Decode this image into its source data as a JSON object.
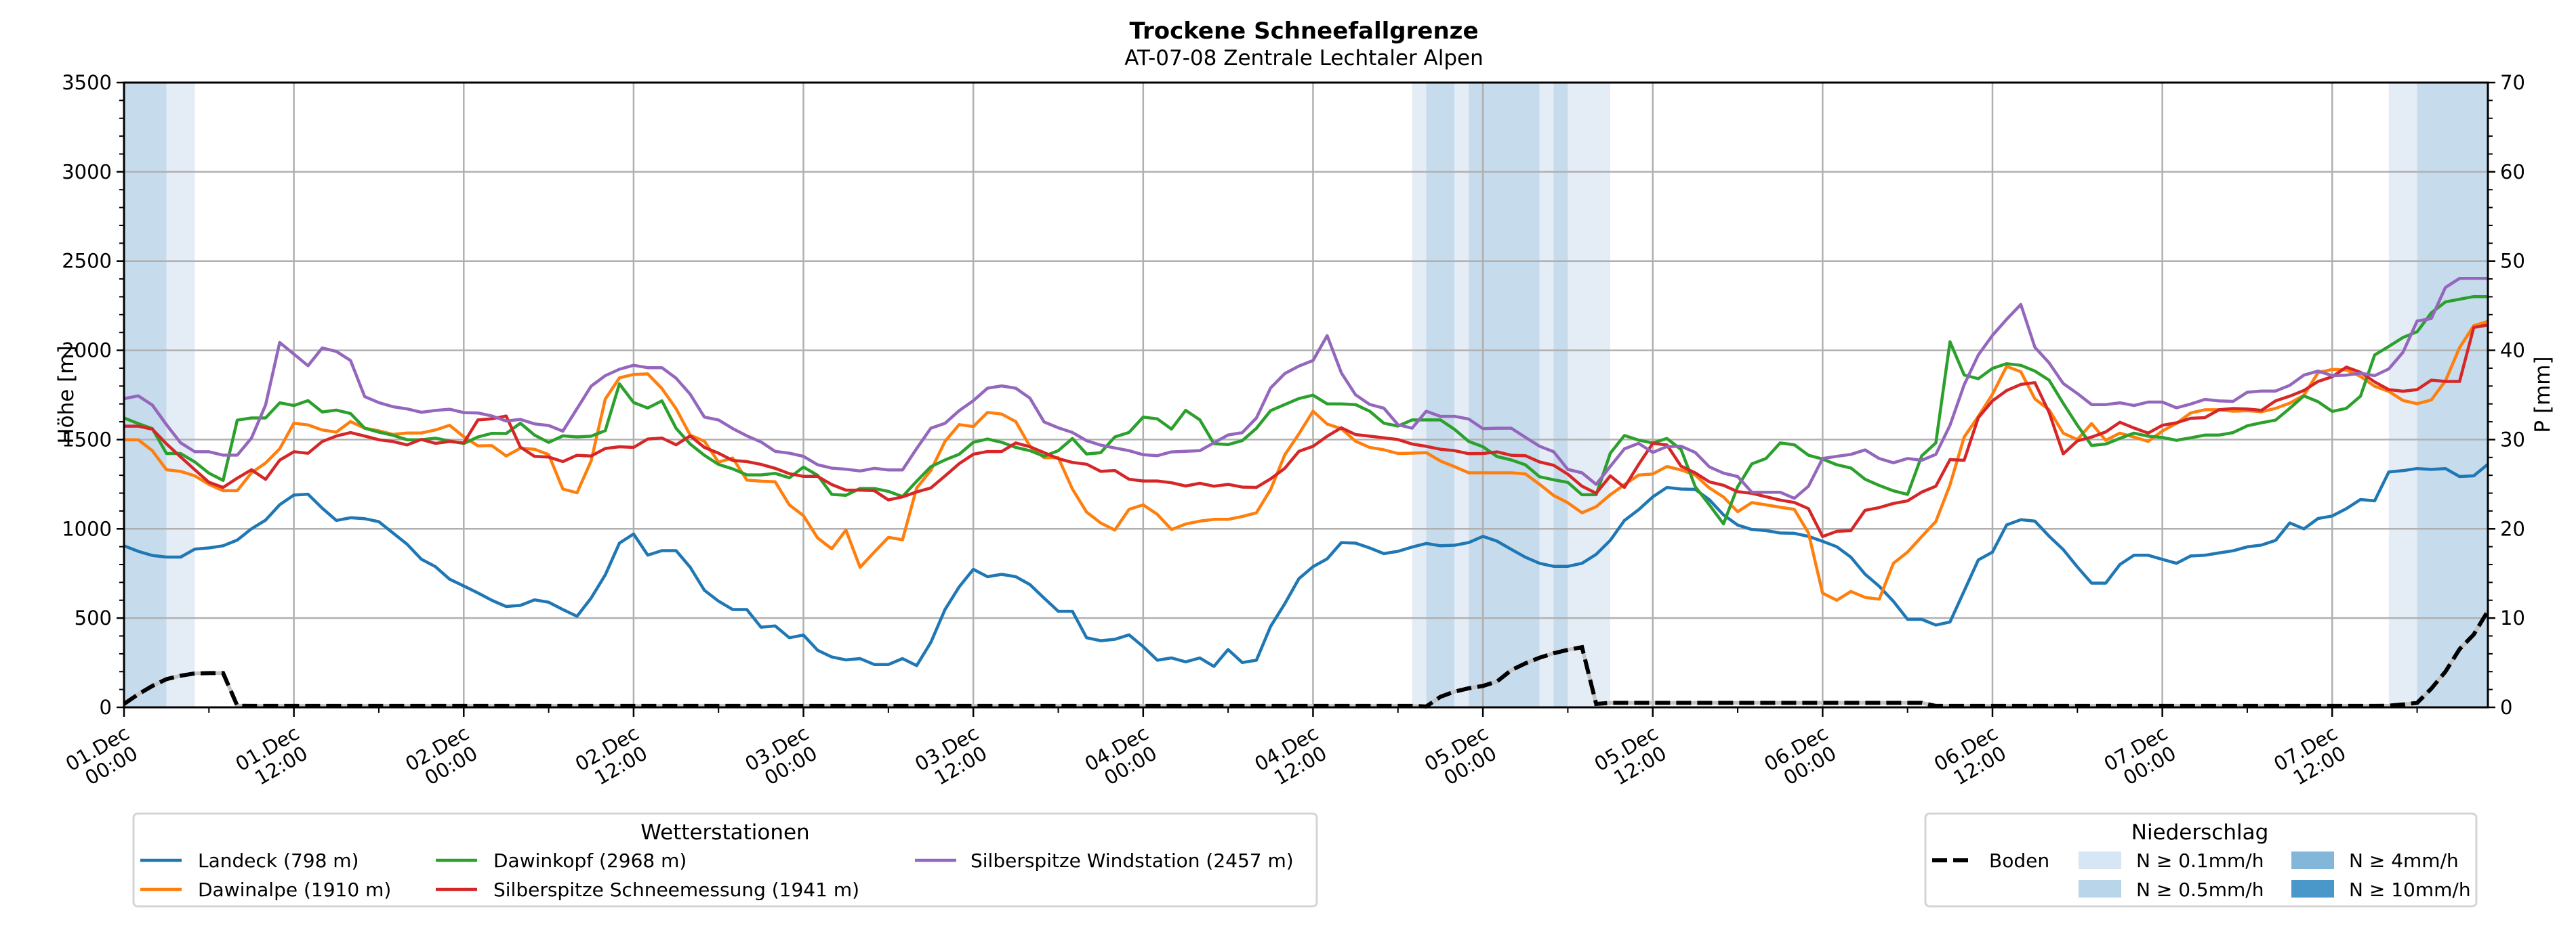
{
  "chart_data": {
    "type": "line",
    "title": "Trockene Schneefallgrenze",
    "subtitle": "AT-07-08 Zentrale Lechtaler Alpen",
    "ylabel": "Höhe [m]",
    "ylabel_right": "P [mm]",
    "ylim": [
      0,
      3500
    ],
    "ylim_right": [
      0,
      70
    ],
    "yticks": [
      "0",
      "500",
      "1000",
      "1500",
      "2000",
      "2500",
      "3000",
      "3500"
    ],
    "yticks_right": [
      "0",
      "10",
      "20",
      "30",
      "40",
      "50",
      "60",
      "70"
    ],
    "xlim": [
      0,
      167
    ],
    "xticks": [
      {
        "hour": 0,
        "line1": "01.Dec",
        "line2": "00:00"
      },
      {
        "hour": 12,
        "line1": "01.Dec",
        "line2": "12:00"
      },
      {
        "hour": 24,
        "line1": "02.Dec",
        "line2": "00:00"
      },
      {
        "hour": 36,
        "line1": "02.Dec",
        "line2": "12:00"
      },
      {
        "hour": 48,
        "line1": "03.Dec",
        "line2": "00:00"
      },
      {
        "hour": 60,
        "line1": "03.Dec",
        "line2": "12:00"
      },
      {
        "hour": 72,
        "line1": "04.Dec",
        "line2": "00:00"
      },
      {
        "hour": 84,
        "line1": "04.Dec",
        "line2": "12:00"
      },
      {
        "hour": 96,
        "line1": "05.Dec",
        "line2": "00:00"
      },
      {
        "hour": 108,
        "line1": "05.Dec",
        "line2": "12:00"
      },
      {
        "hour": 120,
        "line1": "06.Dec",
        "line2": "00:00"
      },
      {
        "hour": 132,
        "line1": "06.Dec",
        "line2": "12:00"
      },
      {
        "hour": 144,
        "line1": "07.Dec",
        "line2": "00:00"
      },
      {
        "hour": 156,
        "line1": "07.Dec",
        "line2": "12:00"
      }
    ],
    "grid": true,
    "series": [
      {
        "name": "Landeck (798 m)",
        "color": "#1f77b4",
        "values": [
          905,
          874,
          851,
          842,
          842,
          886,
          893,
          905,
          937,
          1000,
          1049,
          1135,
          1189,
          1194,
          1116,
          1047,
          1062,
          1057,
          1040,
          977,
          914,
          830,
          788,
          718,
          680,
          641,
          599,
          565,
          571,
          602,
          589,
          548,
          510,
          612,
          742,
          920,
          971,
          853,
          878,
          878,
          785,
          656,
          595,
          548,
          548,
          449,
          456,
          390,
          405,
          320,
          282,
          266,
          273,
          240,
          240,
          273,
          234,
          364,
          548,
          675,
          773,
          732,
          745,
          732,
          688,
          612,
          538,
          538,
          390,
          373,
          381,
          406,
          340,
          264,
          277,
          255,
          277,
          229,
          324,
          251,
          264,
          453,
          580,
          721,
          788,
          832,
          923,
          920,
          893,
          861,
          874,
          898,
          918,
          905,
          908,
          923,
          958,
          931,
          885,
          841,
          807,
          790,
          790,
          807,
          857,
          936,
          1047,
          1107,
          1179,
          1232,
          1223,
          1221,
          1163,
          1078,
          1021,
          996,
          990,
          977,
          975,
          958,
          930,
          900,
          841,
          746,
          678,
          594,
          493,
          493,
          461,
          478,
          652,
          826,
          870,
          1022,
          1051,
          1043,
          959,
          884,
          786,
          696,
          696,
          800,
          852,
          852,
          829,
          807,
          848,
          852,
          865,
          877,
          899,
          909,
          935,
          1033,
          1000,
          1058,
          1072,
          1113,
          1164,
          1157,
          1319,
          1326,
          1338,
          1333,
          1338,
          1293,
          1297,
          1362
        ]
      },
      {
        "name": "Dawinalpe (1910 m)",
        "color": "#ff7f0e",
        "values": [
          1499,
          1499,
          1438,
          1331,
          1322,
          1297,
          1249,
          1214,
          1214,
          1314,
          1369,
          1448,
          1592,
          1582,
          1554,
          1542,
          1601,
          1564,
          1549,
          1529,
          1537,
          1537,
          1554,
          1580,
          1516,
          1465,
          1466,
          1408,
          1452,
          1446,
          1416,
          1223,
          1202,
          1380,
          1727,
          1846,
          1865,
          1868,
          1786,
          1673,
          1525,
          1491,
          1374,
          1397,
          1273,
          1267,
          1264,
          1134,
          1074,
          949,
          888,
          993,
          784,
          870,
          952,
          939,
          1229,
          1327,
          1490,
          1584,
          1573,
          1652,
          1643,
          1601,
          1462,
          1399,
          1399,
          1223,
          1094,
          1033,
          993,
          1109,
          1134,
          1081,
          996,
          1027,
          1043,
          1053,
          1053,
          1069,
          1090,
          1220,
          1414,
          1532,
          1659,
          1587,
          1561,
          1491,
          1456,
          1443,
          1422,
          1424,
          1427,
          1380,
          1348,
          1314,
          1314,
          1314,
          1314,
          1308,
          1250,
          1187,
          1146,
          1090,
          1124,
          1191,
          1248,
          1301,
          1307,
          1349,
          1330,
          1301,
          1229,
          1178,
          1096,
          1147,
          1134,
          1121,
          1109,
          977,
          640,
          600,
          649,
          616,
          606,
          807,
          870,
          957,
          1041,
          1246,
          1514,
          1630,
          1754,
          1910,
          1880,
          1728,
          1667,
          1536,
          1500,
          1590,
          1496,
          1536,
          1514,
          1490,
          1548,
          1591,
          1649,
          1667,
          1667,
          1659,
          1662,
          1656,
          1675,
          1704,
          1748,
          1875,
          1893,
          1890,
          1854,
          1799,
          1770,
          1719,
          1701,
          1722,
          1829,
          2015,
          2138,
          2162
        ]
      },
      {
        "name": "Dawinkopf (2968 m)",
        "color": "#2ca02c",
        "values": [
          1621,
          1590,
          1561,
          1422,
          1422,
          1375,
          1312,
          1271,
          1609,
          1621,
          1621,
          1706,
          1691,
          1718,
          1655,
          1665,
          1646,
          1564,
          1542,
          1524,
          1499,
          1499,
          1508,
          1492,
          1478,
          1515,
          1535,
          1534,
          1592,
          1525,
          1484,
          1521,
          1515,
          1519,
          1550,
          1812,
          1708,
          1677,
          1717,
          1563,
          1475,
          1412,
          1361,
          1336,
          1302,
          1302,
          1311,
          1286,
          1346,
          1300,
          1193,
          1188,
          1226,
          1226,
          1210,
          1181,
          1267,
          1348,
          1386,
          1418,
          1485,
          1503,
          1485,
          1456,
          1438,
          1407,
          1438,
          1506,
          1419,
          1427,
          1515,
          1540,
          1626,
          1616,
          1559,
          1664,
          1611,
          1477,
          1472,
          1494,
          1563,
          1662,
          1696,
          1730,
          1749,
          1700,
          1700,
          1696,
          1659,
          1592,
          1576,
          1610,
          1610,
          1610,
          1557,
          1490,
          1460,
          1405,
          1386,
          1359,
          1292,
          1275,
          1260,
          1191,
          1191,
          1424,
          1523,
          1497,
          1481,
          1506,
          1444,
          1236,
          1134,
          1028,
          1236,
          1364,
          1394,
          1481,
          1471,
          1412,
          1391,
          1359,
          1341,
          1278,
          1243,
          1213,
          1193,
          1409,
          1481,
          2048,
          1862,
          1841,
          1899,
          1925,
          1916,
          1884,
          1833,
          1703,
          1580,
          1467,
          1475,
          1507,
          1536,
          1519,
          1512,
          1496,
          1510,
          1525,
          1525,
          1539,
          1577,
          1594,
          1609,
          1675,
          1745,
          1712,
          1658,
          1675,
          1743,
          1974,
          2022,
          2072,
          2104,
          2210,
          2271,
          2286,
          2301,
          2301
        ]
      },
      {
        "name": "Silberspitze Schneemessung (1941 m)",
        "color": "#d62728",
        "values": [
          1575,
          1575,
          1558,
          1476,
          1403,
          1331,
          1261,
          1232,
          1284,
          1331,
          1277,
          1385,
          1432,
          1423,
          1489,
          1520,
          1539,
          1520,
          1499,
          1489,
          1470,
          1501,
          1479,
          1489,
          1481,
          1610,
          1616,
          1632,
          1458,
          1406,
          1402,
          1377,
          1412,
          1408,
          1450,
          1460,
          1456,
          1503,
          1509,
          1471,
          1521,
          1456,
          1424,
          1383,
          1377,
          1361,
          1339,
          1309,
          1294,
          1294,
          1248,
          1217,
          1217,
          1214,
          1162,
          1179,
          1207,
          1229,
          1296,
          1365,
          1418,
          1433,
          1433,
          1481,
          1460,
          1427,
          1393,
          1372,
          1362,
          1322,
          1327,
          1278,
          1268,
          1268,
          1258,
          1240,
          1255,
          1239,
          1249,
          1234,
          1232,
          1280,
          1339,
          1434,
          1462,
          1519,
          1566,
          1528,
          1519,
          1510,
          1500,
          1475,
          1462,
          1446,
          1438,
          1421,
          1422,
          1431,
          1412,
          1410,
          1375,
          1356,
          1306,
          1239,
          1199,
          1297,
          1232,
          1360,
          1479,
          1470,
          1351,
          1313,
          1263,
          1244,
          1208,
          1199,
          1180,
          1161,
          1148,
          1113,
          957,
          986,
          990,
          1104,
          1119,
          1142,
          1157,
          1206,
          1239,
          1388,
          1384,
          1623,
          1717,
          1775,
          1809,
          1819,
          1652,
          1420,
          1493,
          1514,
          1543,
          1597,
          1565,
          1536,
          1580,
          1594,
          1619,
          1623,
          1667,
          1674,
          1671,
          1664,
          1717,
          1743,
          1775,
          1826,
          1852,
          1906,
          1877,
          1823,
          1780,
          1771,
          1780,
          1833,
          1826,
          1826,
          2128,
          2142
        ]
      },
      {
        "name": "Silberspitze Windstation (2457 m)",
        "color": "#9467bd",
        "values": [
          1729,
          1745,
          1693,
          1583,
          1482,
          1432,
          1432,
          1413,
          1413,
          1508,
          1694,
          2044,
          1979,
          1914,
          2013,
          1994,
          1943,
          1741,
          1707,
          1684,
          1672,
          1653,
          1663,
          1670,
          1651,
          1649,
          1632,
          1604,
          1613,
          1588,
          1579,
          1547,
          1673,
          1799,
          1858,
          1894,
          1916,
          1903,
          1903,
          1844,
          1754,
          1626,
          1610,
          1562,
          1521,
          1487,
          1434,
          1424,
          1406,
          1359,
          1340,
          1334,
          1324,
          1339,
          1330,
          1330,
          1450,
          1564,
          1591,
          1662,
          1718,
          1788,
          1801,
          1788,
          1732,
          1599,
          1566,
          1540,
          1494,
          1469,
          1453,
          1438,
          1415,
          1410,
          1431,
          1434,
          1438,
          1482,
          1526,
          1539,
          1621,
          1789,
          1870,
          1912,
          1943,
          2082,
          1874,
          1751,
          1697,
          1676,
          1583,
          1564,
          1659,
          1630,
          1630,
          1615,
          1561,
          1564,
          1564,
          1513,
          1463,
          1432,
          1333,
          1314,
          1249,
          1350,
          1448,
          1479,
          1428,
          1461,
          1463,
          1428,
          1347,
          1312,
          1293,
          1205,
          1205,
          1205,
          1171,
          1239,
          1394,
          1406,
          1417,
          1442,
          1394,
          1370,
          1394,
          1384,
          1417,
          1580,
          1807,
          1974,
          2084,
          2174,
          2257,
          2017,
          1930,
          1814,
          1758,
          1696,
          1696,
          1706,
          1691,
          1710,
          1710,
          1678,
          1699,
          1725,
          1717,
          1714,
          1765,
          1772,
          1772,
          1804,
          1861,
          1884,
          1858,
          1861,
          1872,
          1858,
          1896,
          1989,
          2164,
          2178,
          2352,
          2403,
          2403,
          2403
        ]
      }
    ],
    "boden": {
      "name": "Boden",
      "color": "#000000",
      "values": [
        19,
        73,
        120,
        158,
        177,
        190,
        192,
        192,
        9,
        8,
        8,
        8,
        8,
        8,
        8,
        8,
        8,
        8,
        8,
        8,
        8,
        8,
        8,
        8,
        8,
        8,
        8,
        8,
        8,
        8,
        8,
        8,
        8,
        8,
        8,
        8,
        8,
        8,
        8,
        8,
        8,
        8,
        8,
        8,
        8,
        8,
        8,
        8,
        8,
        8,
        8,
        8,
        8,
        8,
        8,
        8,
        8,
        8,
        8,
        8,
        8,
        8,
        8,
        8,
        8,
        8,
        8,
        8,
        8,
        8,
        8,
        8,
        8,
        8,
        8,
        8,
        8,
        8,
        8,
        8,
        8,
        8,
        8,
        8,
        8,
        8,
        8,
        8,
        8,
        8,
        8,
        8,
        5,
        59,
        88,
        107,
        120,
        145,
        208,
        246,
        278,
        303,
        322,
        337,
        19,
        25,
        25,
        25,
        25,
        25,
        25,
        25,
        25,
        25,
        25,
        25,
        25,
        25,
        25,
        25,
        25,
        25,
        25,
        25,
        25,
        25,
        25,
        25,
        8,
        8,
        8,
        8,
        8,
        8,
        8,
        8,
        8,
        8,
        8,
        8,
        8,
        8,
        8,
        8,
        8,
        8,
        8,
        8,
        8,
        8,
        8,
        8,
        8,
        8,
        8,
        8,
        8,
        8,
        8,
        8,
        9,
        16,
        25,
        105,
        200,
        326,
        408,
        540
      ]
    },
    "precipitation_bands": [
      {
        "start": 0,
        "end": 3,
        "level": "N ≥ 0.5mm/h"
      },
      {
        "start": 3,
        "end": 5,
        "level": "N ≥ 0.1mm/h"
      },
      {
        "start": 91,
        "end": 92,
        "level": "N ≥ 0.1mm/h"
      },
      {
        "start": 92,
        "end": 94,
        "level": "N ≥ 0.5mm/h"
      },
      {
        "start": 94,
        "end": 95,
        "level": "N ≥ 0.1mm/h"
      },
      {
        "start": 95,
        "end": 100,
        "level": "N ≥ 0.5mm/h"
      },
      {
        "start": 100,
        "end": 101,
        "level": "N ≥ 0.1mm/h"
      },
      {
        "start": 101,
        "end": 102,
        "level": "N ≥ 0.5mm/h"
      },
      {
        "start": 102,
        "end": 105,
        "level": "N ≥ 0.1mm/h"
      },
      {
        "start": 160,
        "end": 162,
        "level": "N ≥ 0.1mm/h"
      },
      {
        "start": 162,
        "end": 167,
        "level": "N ≥ 0.5mm/h"
      }
    ],
    "legend_stations": {
      "title": "Wetterstationen",
      "placement": "bottom-left"
    },
    "legend_precip": {
      "title": "Niederschlag",
      "placement": "bottom-right",
      "items": [
        {
          "label": "Boden",
          "kind": "dashed-line",
          "color": "#000000"
        },
        {
          "label": "N ≥ 0.1mm/h",
          "kind": "swatch",
          "color": "#d6e6f4",
          "plot_color": "#e4ecf6"
        },
        {
          "label": "N ≥ 0.5mm/h",
          "kind": "swatch",
          "color": "#b8d5ea",
          "plot_color": "#c6dbec"
        },
        {
          "label": "N ≥ 4mm/h",
          "kind": "swatch",
          "color": "#82b7da",
          "plot_color": "#a3c6e2"
        },
        {
          "label": "N ≥ 10mm/h",
          "kind": "swatch",
          "color": "#4a98c9",
          "plot_color": "#7fb0d6"
        }
      ]
    }
  }
}
